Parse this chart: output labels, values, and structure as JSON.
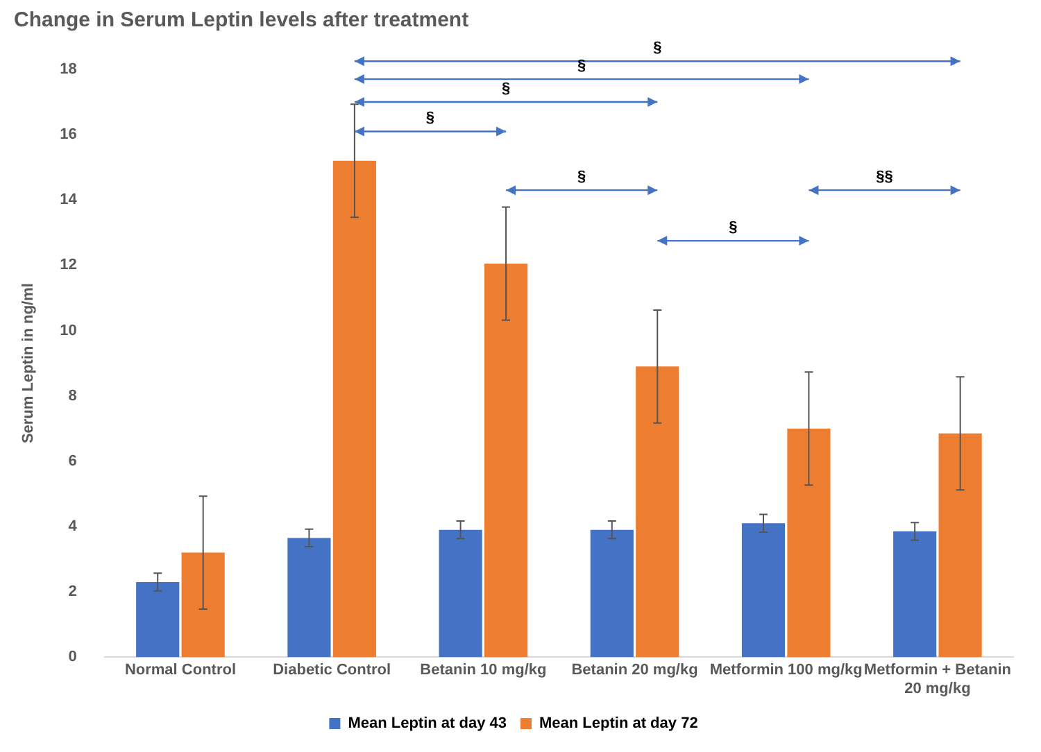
{
  "chart_data": {
    "type": "bar",
    "title": "Change in Serum Leptin levels after treatment",
    "ylabel": "Serum Leptin in ng/ml",
    "categories": [
      "Normal Control",
      "Diabetic Control",
      "Betanin 10 mg/kg",
      "Betanin 20 mg/kg",
      "Metformin 100 mg/kg",
      "Metformin + Betanin 20 mg/kg"
    ],
    "series": [
      {
        "name": "Mean Leptin at day 43",
        "color": "#4472c4",
        "values": [
          2.3,
          3.65,
          3.9,
          3.9,
          4.1,
          3.85
        ],
        "errors": [
          0.27,
          0.27,
          0.27,
          0.27,
          0.27,
          0.27
        ]
      },
      {
        "name": "Mean Leptin at day 72",
        "color": "#ed7d31",
        "values": [
          3.2,
          15.2,
          12.05,
          8.9,
          7.0,
          6.85
        ],
        "errors": [
          1.73,
          1.73,
          1.73,
          1.73,
          1.73,
          1.73
        ]
      }
    ],
    "ylim": [
      0,
      18
    ],
    "yticks": [
      0,
      2,
      4,
      6,
      8,
      10,
      12,
      14,
      16,
      18
    ],
    "grid": false,
    "legend": "bottom",
    "annotations": [
      "§",
      "§",
      "§",
      "§",
      "§",
      "§",
      "§§"
    ]
  }
}
